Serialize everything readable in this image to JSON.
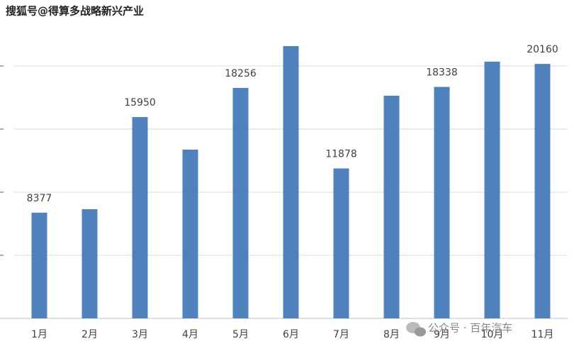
{
  "chart_data": {
    "type": "bar",
    "categories": [
      "1月",
      "2月",
      "3月",
      "4月",
      "5月",
      "6月",
      "7月",
      "8月",
      "9月",
      "10月",
      "11月"
    ],
    "values": [
      8377,
      8650,
      15950,
      13370,
      18256,
      21570,
      11878,
      17640,
      18338,
      20340,
      20160
    ],
    "value_labels": [
      "8377",
      null,
      "15950",
      null,
      "18256",
      null,
      "11878",
      null,
      "18338",
      null,
      "20160"
    ],
    "color": "#4f81bd",
    "ylim": [
      0,
      25000
    ],
    "yticks": [
      0,
      5000,
      10000,
      15000,
      20000
    ],
    "grid": true
  },
  "watermarks": [
    "搜狐号@得算多战略新兴产业",
    "公众号 · 百年汽车"
  ]
}
